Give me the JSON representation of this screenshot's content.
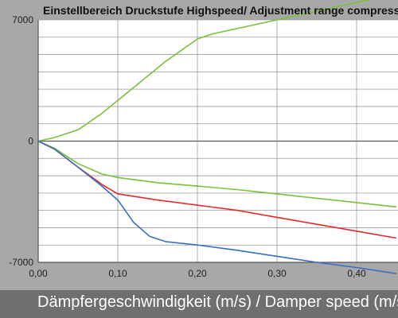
{
  "chart_data": {
    "type": "line",
    "title": "Einstellbereich Druckstufe Highspeed/ Adjustment range compression hi",
    "xlabel": "Dämpfergeschwindigkeit (m/s) / Damper speed (m/s)",
    "ylabel": "",
    "xlim": [
      0,
      0.45
    ],
    "ylim": [
      -7000,
      7000
    ],
    "x_ticks": [
      "0,00",
      "0,10",
      "0,20",
      "0,30",
      "0,40"
    ],
    "y_ticks": [
      "7000",
      "0",
      "-7000"
    ],
    "grid": true,
    "series": [
      {
        "color": "#7bbf3a",
        "x": [
          0,
          0.02,
          0.05,
          0.08,
          0.12,
          0.16,
          0.2,
          0.22,
          0.25,
          0.3,
          0.35,
          0.4,
          0.45
        ],
        "values": [
          0,
          200,
          650,
          1600,
          3100,
          4600,
          5900,
          6200,
          6500,
          7000,
          7500,
          8000,
          8500
        ]
      },
      {
        "color": "#7bbf3a",
        "x": [
          0,
          0.02,
          0.05,
          0.08,
          0.1,
          0.15,
          0.2,
          0.25,
          0.3,
          0.35,
          0.4,
          0.45
        ],
        "values": [
          0,
          -400,
          -1300,
          -1900,
          -2100,
          -2400,
          -2600,
          -2800,
          -3050,
          -3300,
          -3550,
          -3800
        ]
      },
      {
        "color": "#e52a2a",
        "x": [
          0,
          0.02,
          0.05,
          0.08,
          0.1,
          0.15,
          0.2,
          0.25,
          0.3,
          0.35,
          0.4,
          0.45
        ],
        "values": [
          0,
          -450,
          -1500,
          -2500,
          -3050,
          -3400,
          -3700,
          -4000,
          -4400,
          -4800,
          -5200,
          -5600
        ]
      },
      {
        "color": "#3a6fbf",
        "x": [
          0,
          0.02,
          0.05,
          0.08,
          0.1,
          0.12,
          0.14,
          0.16,
          0.2,
          0.25,
          0.3,
          0.35,
          0.4,
          0.45
        ],
        "values": [
          0,
          -450,
          -1500,
          -2600,
          -3400,
          -4700,
          -5500,
          -5800,
          -6000,
          -6300,
          -6650,
          -7000,
          -7300,
          -7650
        ]
      }
    ]
  }
}
